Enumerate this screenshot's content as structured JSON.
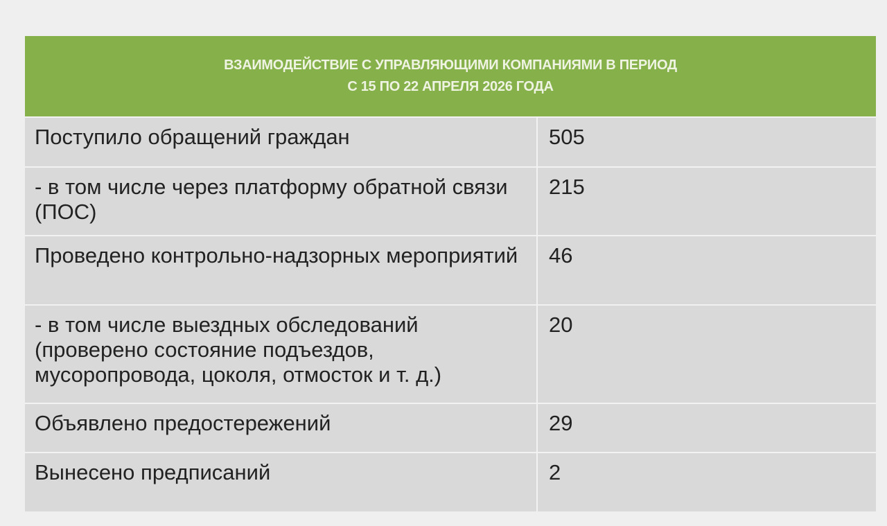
{
  "title": "ВЗАИМОДЕЙСТВИЕ С УПРАВЛЯЮЩИМИ КОМПАНИЯМИ В ПЕРИОД",
  "subtitle": "С 15 ПО 22 АПРЕЛЯ 2026 ГОДА",
  "rows": [
    {
      "label": "Поступило обращений граждан",
      "value": "505"
    },
    {
      "label": "- в том числе через платформу обратной связи (ПОС)",
      "value": "215"
    },
    {
      "label": "Проведено контрольно-надзорных мероприятий",
      "value": "46"
    },
    {
      "label": "- в том числе выездных обследований (проверено состояние подъездов, мусоропровода, цоколя, отмосток и т. д.)",
      "value": "20"
    },
    {
      "label": "Объявлено предостережений",
      "value": "29"
    },
    {
      "label": "Вынесено предписаний",
      "value": "2"
    }
  ],
  "colors": {
    "header": "#86b04a",
    "cell": "#d9d9d9",
    "background": "#efefef"
  }
}
